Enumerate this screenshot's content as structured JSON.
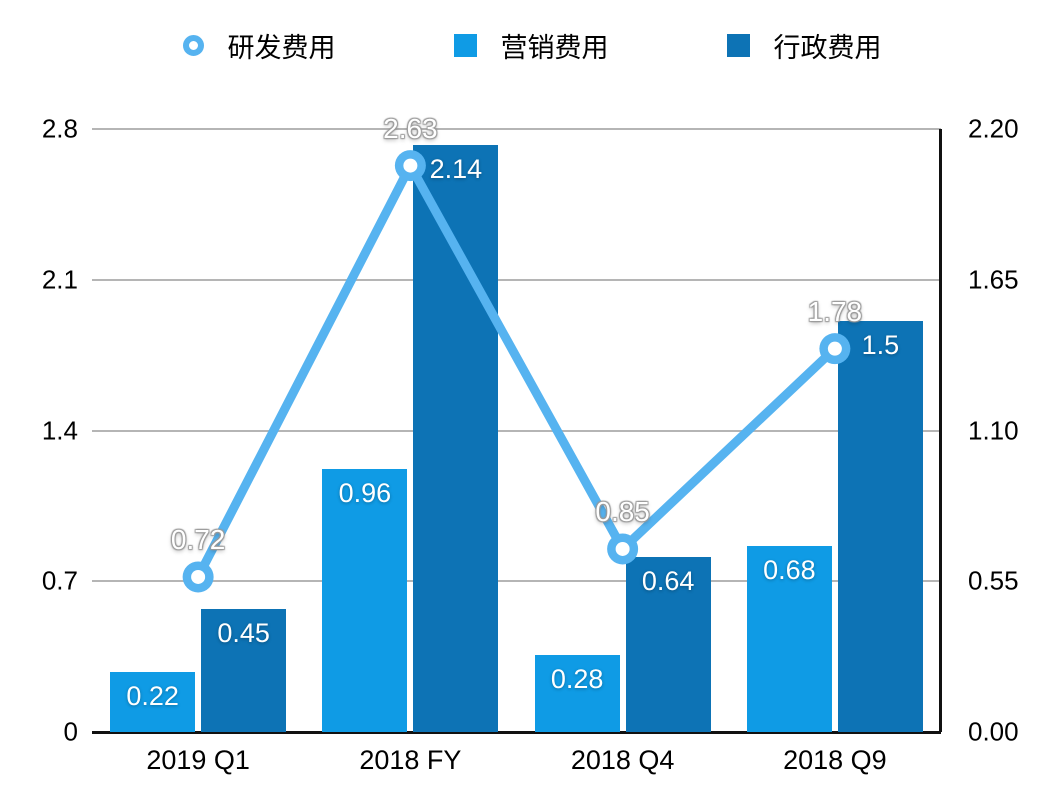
{
  "chart_data": {
    "type": "combo",
    "title": "",
    "categories": [
      "2019 Q1",
      "2018 FY",
      "2018 Q4",
      "2018 Q9"
    ],
    "series": [
      {
        "name": "研发费用",
        "type": "line",
        "axis": "left",
        "color": "#56B3F0",
        "marker": "ring",
        "values": [
          0.72,
          2.63,
          0.85,
          1.78
        ],
        "labels": [
          "0.72",
          "2.63",
          "0.85",
          "1.78"
        ]
      },
      {
        "name": "营销费用",
        "type": "bar",
        "axis": "right",
        "color": "#0F9BE5",
        "values": [
          0.22,
          0.96,
          0.28,
          0.68
        ],
        "labels": [
          "0.22",
          "0.96",
          "0.28",
          "0.68"
        ]
      },
      {
        "name": "行政费用",
        "type": "bar",
        "axis": "right",
        "color": "#0D73B5",
        "values": [
          0.45,
          2.14,
          0.64,
          1.5
        ],
        "labels": [
          "0.45",
          "2.14",
          "0.64",
          "1.5"
        ]
      }
    ],
    "left_axis": {
      "min": 0,
      "max": 2.8,
      "ticks_top_down": [
        "2.8",
        "2.1",
        "1.4",
        "0.7",
        "0"
      ]
    },
    "right_axis": {
      "min": 0,
      "max": 2.2,
      "ticks_top_down": [
        "2.20",
        "1.65",
        "1.10",
        "0.55",
        "0.00"
      ]
    },
    "grid": "horizontal",
    "legend_position": "top"
  },
  "colors": {
    "gridline": "#b5b5b5",
    "axis_line": "#111111",
    "background": "#ffffff",
    "text": "#000000"
  }
}
